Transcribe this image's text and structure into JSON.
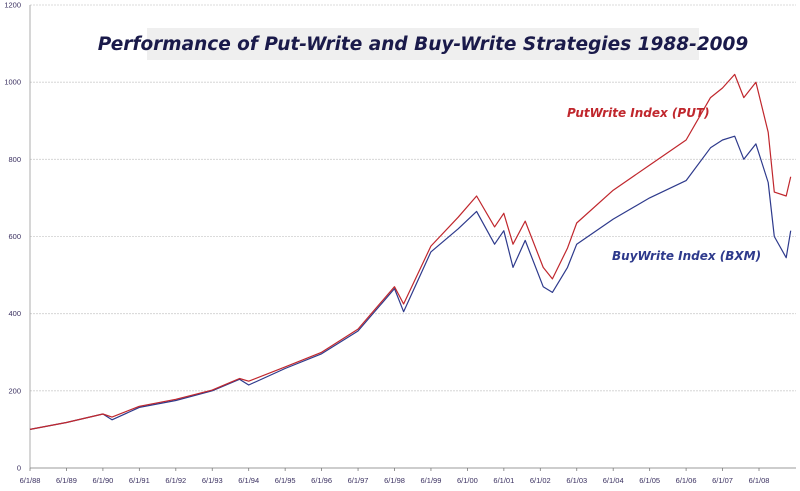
{
  "chart_data": {
    "type": "line",
    "title": "Performance of Put-Write and Buy-Write Strategies 1988-2009",
    "xlabel": "",
    "ylabel": "",
    "ylim": [
      0,
      1200
    ],
    "yticks": [
      "0",
      "200",
      "400",
      "600",
      "800",
      "1000",
      "1200"
    ],
    "xticks": [
      "6/1/88",
      "6/1/89",
      "6/1/90",
      "6/1/91",
      "6/1/92",
      "6/1/93",
      "6/1/94",
      "6/1/95",
      "6/1/96",
      "6/1/97",
      "6/1/98",
      "6/1/99",
      "6/1/00",
      "6/1/01",
      "6/1/02",
      "6/1/03",
      "6/1/04",
      "6/1/05",
      "6/1/06",
      "6/1/07",
      "6/1/08"
    ],
    "grid": "horizontal",
    "series": [
      {
        "name": "PutWrite Index (PUT)",
        "color": "#c0272d",
        "points": [
          [
            "1988-06-01",
            100
          ],
          [
            "1989-06-01",
            118
          ],
          [
            "1990-06-01",
            140
          ],
          [
            "1990-09-01",
            132
          ],
          [
            "1991-06-01",
            160
          ],
          [
            "1992-06-01",
            178
          ],
          [
            "1993-06-01",
            202
          ],
          [
            "1994-03-01",
            232
          ],
          [
            "1994-06-01",
            225
          ],
          [
            "1995-06-01",
            262
          ],
          [
            "1996-06-01",
            300
          ],
          [
            "1997-06-01",
            360
          ],
          [
            "1998-06-01",
            470
          ],
          [
            "1998-09-01",
            425
          ],
          [
            "1999-06-01",
            575
          ],
          [
            "2000-03-01",
            650
          ],
          [
            "2000-09-01",
            705
          ],
          [
            "2001-03-01",
            625
          ],
          [
            "2001-06-01",
            660
          ],
          [
            "2001-09-01",
            580
          ],
          [
            "2002-01-01",
            640
          ],
          [
            "2002-07-01",
            520
          ],
          [
            "2002-10-01",
            490
          ],
          [
            "2003-03-01",
            570
          ],
          [
            "2003-06-01",
            635
          ],
          [
            "2004-06-01",
            720
          ],
          [
            "2005-06-01",
            785
          ],
          [
            "2006-06-01",
            850
          ],
          [
            "2007-02-01",
            960
          ],
          [
            "2007-06-01",
            985
          ],
          [
            "2007-10-01",
            1020
          ],
          [
            "2008-01-01",
            960
          ],
          [
            "2008-05-01",
            1000
          ],
          [
            "2008-09-01",
            870
          ],
          [
            "2008-11-01",
            715
          ],
          [
            "2009-03-01",
            705
          ],
          [
            "2009-04-15",
            755
          ]
        ]
      },
      {
        "name": "BuyWrite Index (BXM)",
        "color": "#2e3a8c",
        "points": [
          [
            "1988-06-01",
            100
          ],
          [
            "1989-06-01",
            118
          ],
          [
            "1990-06-01",
            140
          ],
          [
            "1990-09-01",
            125
          ],
          [
            "1991-06-01",
            157
          ],
          [
            "1992-06-01",
            175
          ],
          [
            "1993-06-01",
            200
          ],
          [
            "1994-03-01",
            230
          ],
          [
            "1994-06-01",
            215
          ],
          [
            "1995-06-01",
            258
          ],
          [
            "1996-06-01",
            296
          ],
          [
            "1997-06-01",
            355
          ],
          [
            "1998-06-01",
            465
          ],
          [
            "1998-09-01",
            405
          ],
          [
            "1999-06-01",
            560
          ],
          [
            "2000-03-01",
            620
          ],
          [
            "2000-09-01",
            665
          ],
          [
            "2001-03-01",
            580
          ],
          [
            "2001-06-01",
            615
          ],
          [
            "2001-09-01",
            520
          ],
          [
            "2002-01-01",
            590
          ],
          [
            "2002-07-01",
            470
          ],
          [
            "2002-10-01",
            455
          ],
          [
            "2003-03-01",
            520
          ],
          [
            "2003-06-01",
            580
          ],
          [
            "2004-06-01",
            645
          ],
          [
            "2005-06-01",
            700
          ],
          [
            "2006-06-01",
            745
          ],
          [
            "2007-02-01",
            830
          ],
          [
            "2007-06-01",
            850
          ],
          [
            "2007-10-01",
            860
          ],
          [
            "2008-01-01",
            800
          ],
          [
            "2008-05-01",
            840
          ],
          [
            "2008-09-01",
            740
          ],
          [
            "2008-11-01",
            600
          ],
          [
            "2009-03-01",
            545
          ],
          [
            "2009-04-15",
            615
          ]
        ]
      }
    ]
  }
}
